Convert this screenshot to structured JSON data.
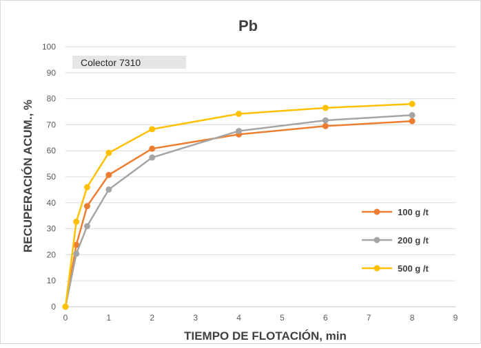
{
  "chart_data": {
    "type": "line",
    "title": "Pb",
    "annotation": "Colector 7310",
    "xlabel": "TIEMPO DE FLOTACIÓN, min",
    "ylabel": "RECUPERACIÓN ACUM., %",
    "xlim": [
      0,
      9
    ],
    "ylim": [
      0,
      100
    ],
    "x_ticks": [
      0,
      1,
      2,
      3,
      4,
      5,
      6,
      7,
      8,
      9
    ],
    "y_ticks": [
      0,
      10,
      20,
      30,
      40,
      50,
      60,
      70,
      80,
      90,
      100
    ],
    "grid": "horizontal",
    "legend_position": "right",
    "series": [
      {
        "name": "100 g /t",
        "color": "#ed7d31",
        "x": [
          0,
          0.25,
          0.5,
          1,
          2,
          4,
          6,
          8
        ],
        "y": [
          0,
          23.8,
          38.7,
          50.7,
          60.8,
          66.3,
          69.5,
          71.4
        ]
      },
      {
        "name": "200 g /t",
        "color": "#a5a5a5",
        "x": [
          0,
          0.25,
          0.5,
          1,
          2,
          4,
          6,
          8
        ],
        "y": [
          0,
          20.4,
          31.0,
          45.1,
          57.4,
          67.6,
          71.7,
          73.7
        ]
      },
      {
        "name": "500 g /t",
        "color": "#ffc000",
        "x": [
          0,
          0.25,
          0.5,
          1,
          2,
          4,
          6,
          8
        ],
        "y": [
          0,
          32.7,
          46.0,
          59.2,
          68.3,
          74.2,
          76.5,
          78.0
        ]
      }
    ]
  }
}
